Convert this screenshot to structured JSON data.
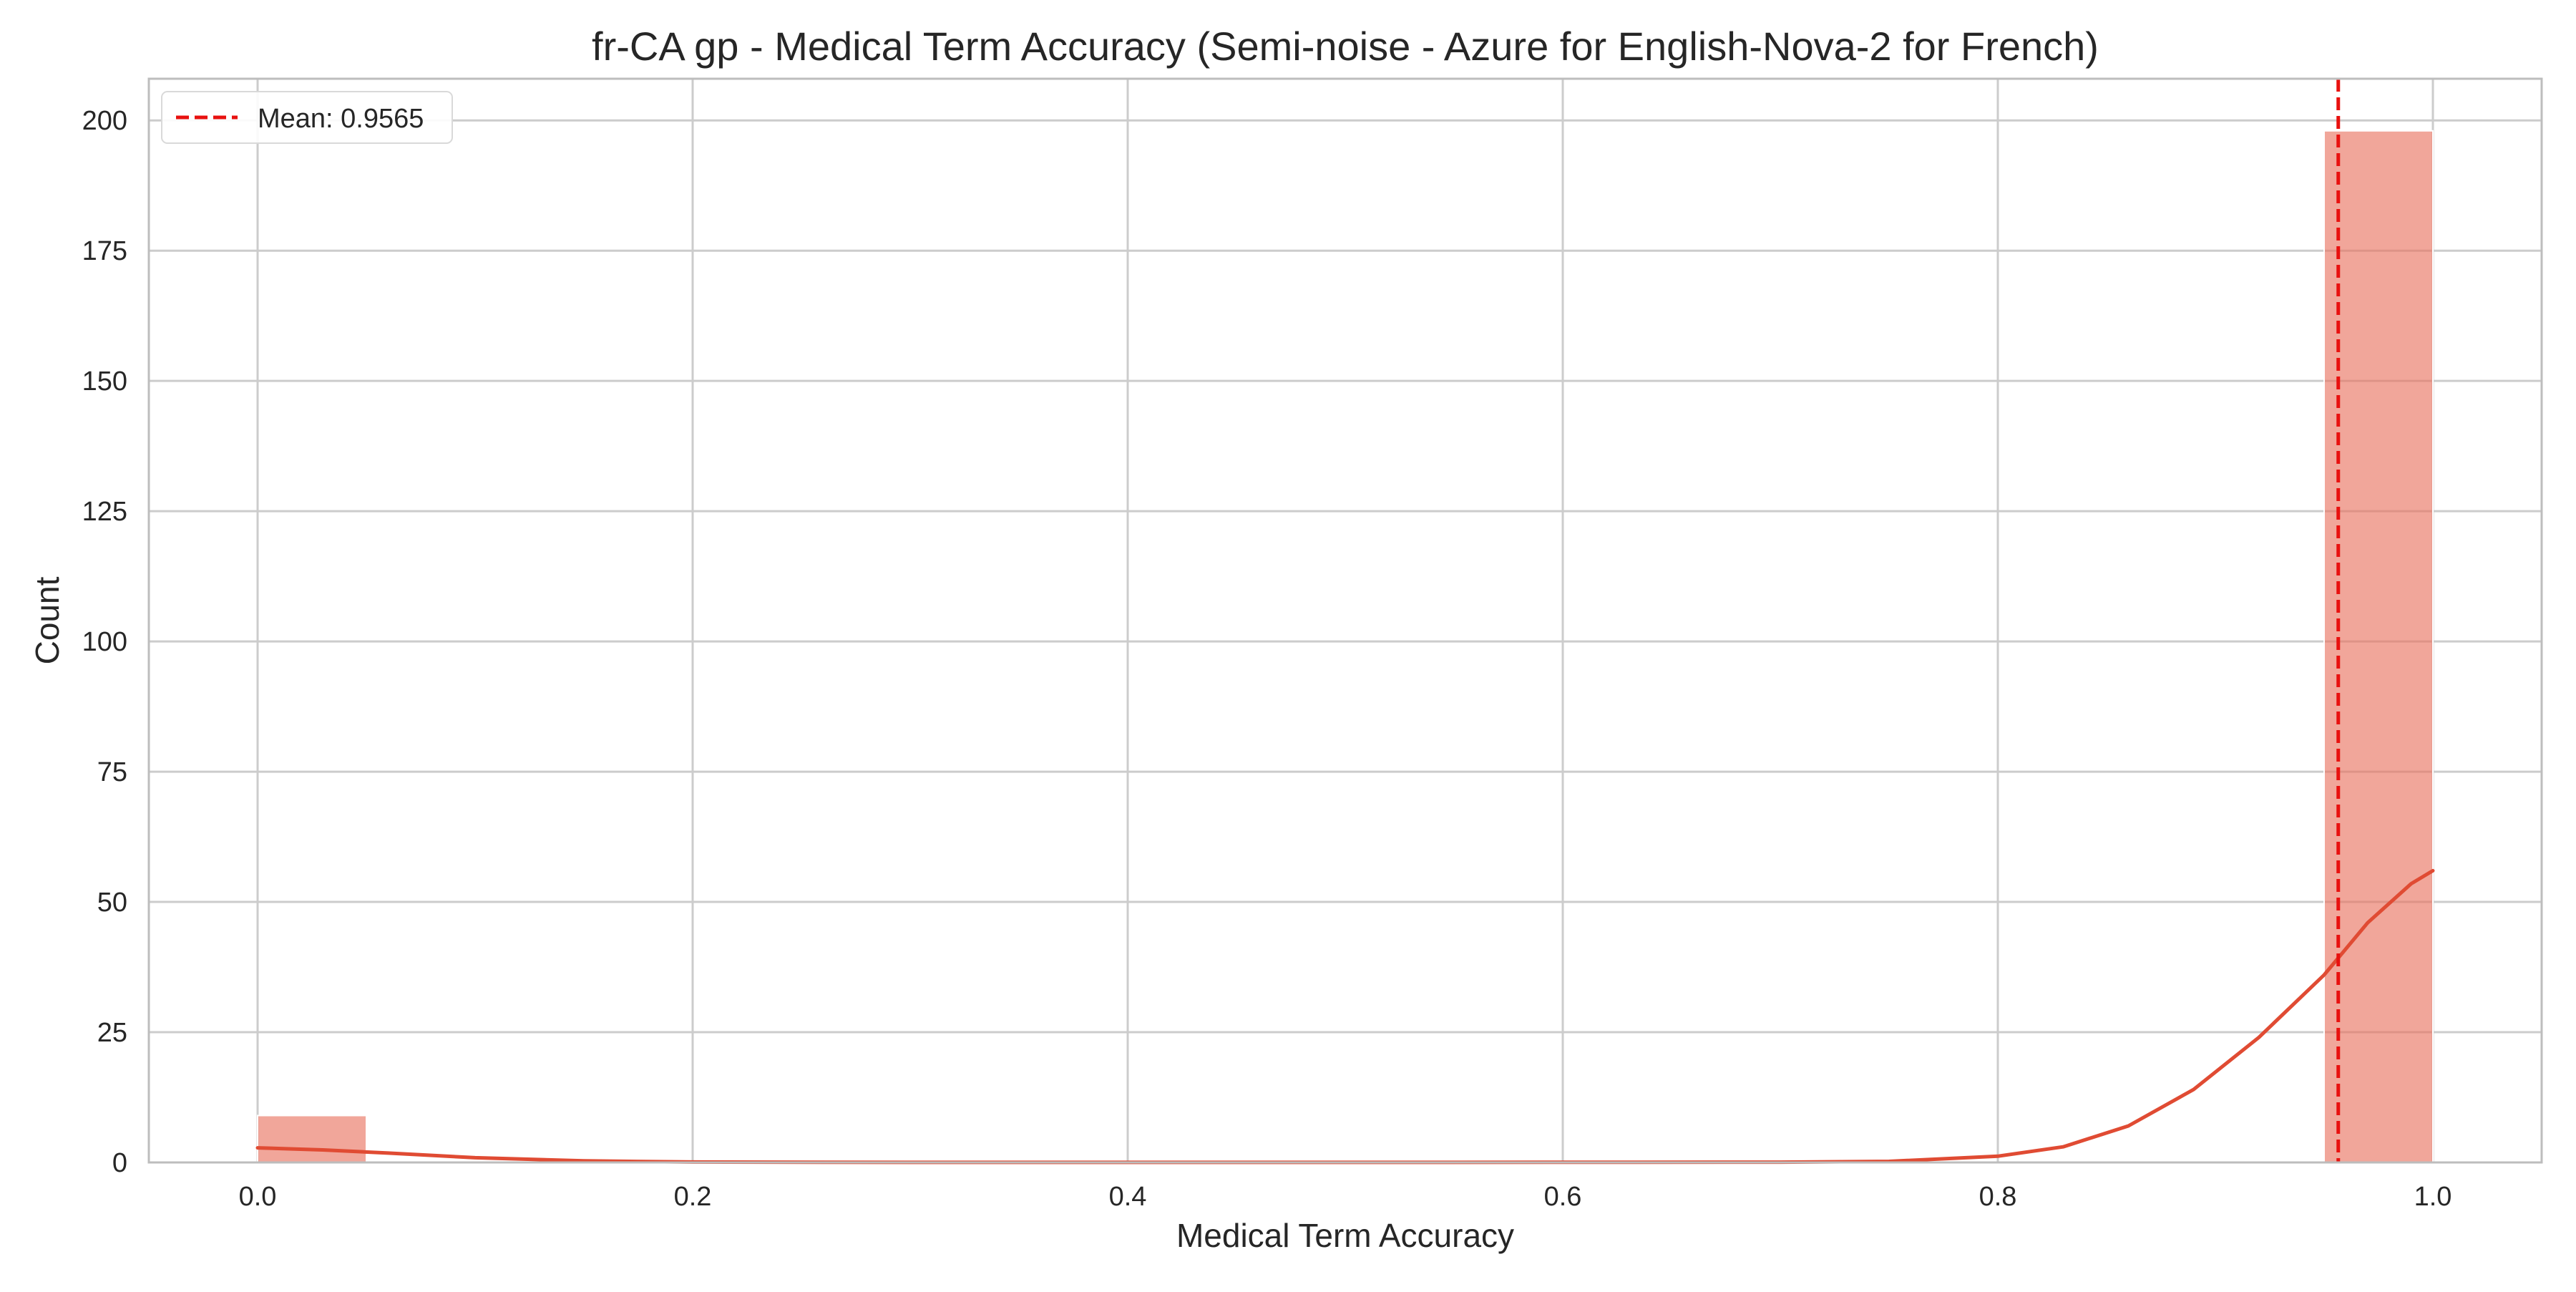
{
  "chart_data": {
    "type": "histogram",
    "title": "fr-CA gp - Medical Term Accuracy (Semi-noise - Azure for English-Nova-2 for French)",
    "xlabel": "Medical Term Accuracy",
    "ylabel": "Count",
    "xlim": [
      -0.05,
      1.05
    ],
    "ylim": [
      0,
      208
    ],
    "x_ticks": [
      0.0,
      0.2,
      0.4,
      0.6,
      0.8,
      1.0
    ],
    "x_tick_labels": [
      "0.0",
      "0.2",
      "0.4",
      "0.6",
      "0.8",
      "1.0"
    ],
    "y_ticks": [
      0,
      25,
      50,
      75,
      100,
      125,
      150,
      175,
      200
    ],
    "y_tick_labels": [
      "0",
      "25",
      "50",
      "75",
      "100",
      "125",
      "150",
      "175",
      "200"
    ],
    "grid": true,
    "bars": [
      {
        "x0": 0.0,
        "x1": 0.05,
        "count": 9
      },
      {
        "x0": 0.95,
        "x1": 1.0,
        "count": 198
      }
    ],
    "kde": [
      {
        "x": 0.0,
        "y": 2.8
      },
      {
        "x": 0.03,
        "y": 2.4
      },
      {
        "x": 0.06,
        "y": 1.8
      },
      {
        "x": 0.1,
        "y": 0.9
      },
      {
        "x": 0.15,
        "y": 0.3
      },
      {
        "x": 0.2,
        "y": 0.08
      },
      {
        "x": 0.3,
        "y": 0.02
      },
      {
        "x": 0.5,
        "y": 0.01
      },
      {
        "x": 0.7,
        "y": 0.05
      },
      {
        "x": 0.75,
        "y": 0.2
      },
      {
        "x": 0.8,
        "y": 1.2
      },
      {
        "x": 0.83,
        "y": 3.0
      },
      {
        "x": 0.86,
        "y": 7.0
      },
      {
        "x": 0.89,
        "y": 14.0
      },
      {
        "x": 0.92,
        "y": 24.0
      },
      {
        "x": 0.95,
        "y": 36.0
      },
      {
        "x": 0.97,
        "y": 46.0
      },
      {
        "x": 0.99,
        "y": 53.5
      },
      {
        "x": 1.0,
        "y": 56.0
      }
    ],
    "mean_line": {
      "x": 0.9565,
      "label": "Mean: 0.9565"
    },
    "legend_position": "upper left",
    "colors": {
      "bar_fill": "#e8705c",
      "bar_opacity": 0.62,
      "kde_line": "#e04b33",
      "mean_line": "#e8110f",
      "grid": "#cccccc",
      "axis": "#bdbdbd"
    }
  }
}
